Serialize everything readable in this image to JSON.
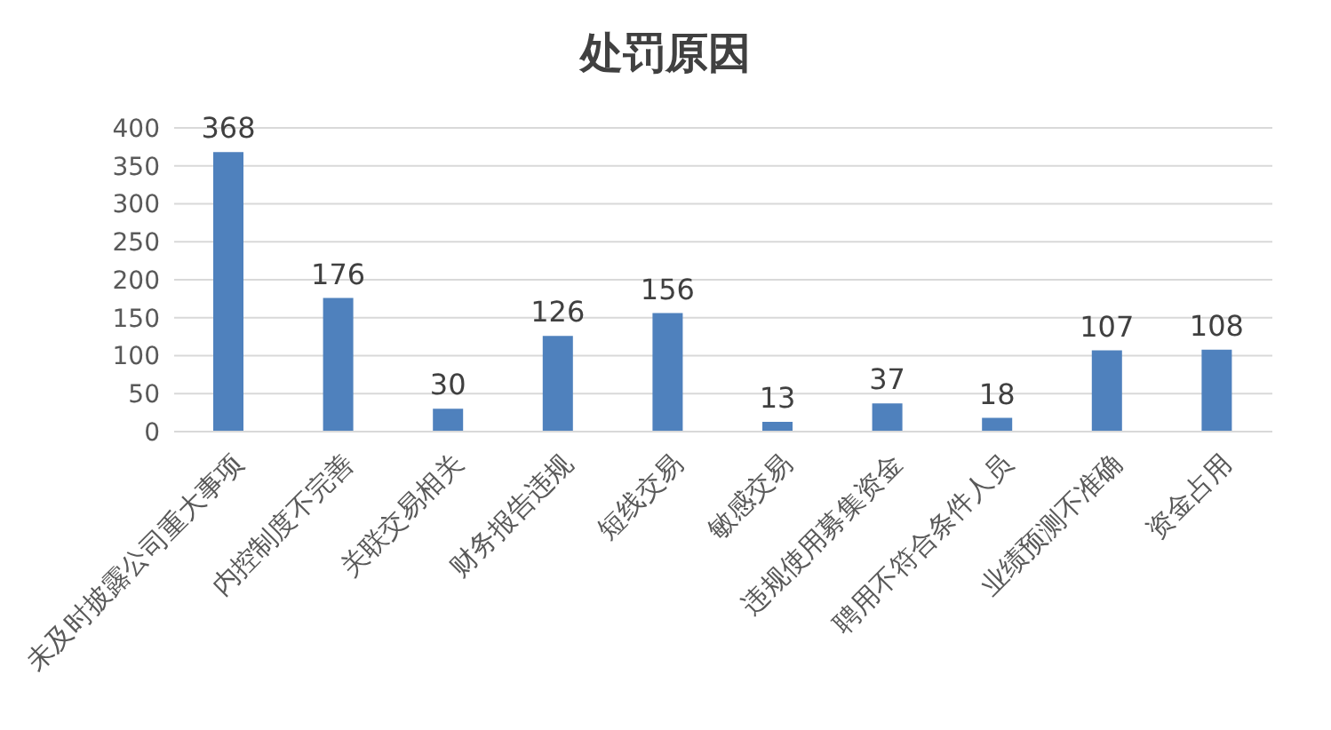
{
  "chart_data": {
    "type": "bar",
    "title": "处罚原因",
    "categories": [
      "未及时披露公司重大事项",
      "内控制度不完善",
      "关联交易相关",
      "财务报告违规",
      "短线交易",
      "敏感交易",
      "违规使用募集资金",
      "聘用不符合条件人员",
      "业绩预测不准确",
      "资金占用"
    ],
    "values": [
      368,
      176,
      30,
      126,
      156,
      13,
      37,
      18,
      107,
      108
    ],
    "color": "#4f81bd",
    "ylim": [
      0,
      400
    ],
    "yticks": [
      0,
      50,
      100,
      150,
      200,
      250,
      300,
      350,
      400
    ],
    "grid": "y",
    "data_labels": true
  }
}
